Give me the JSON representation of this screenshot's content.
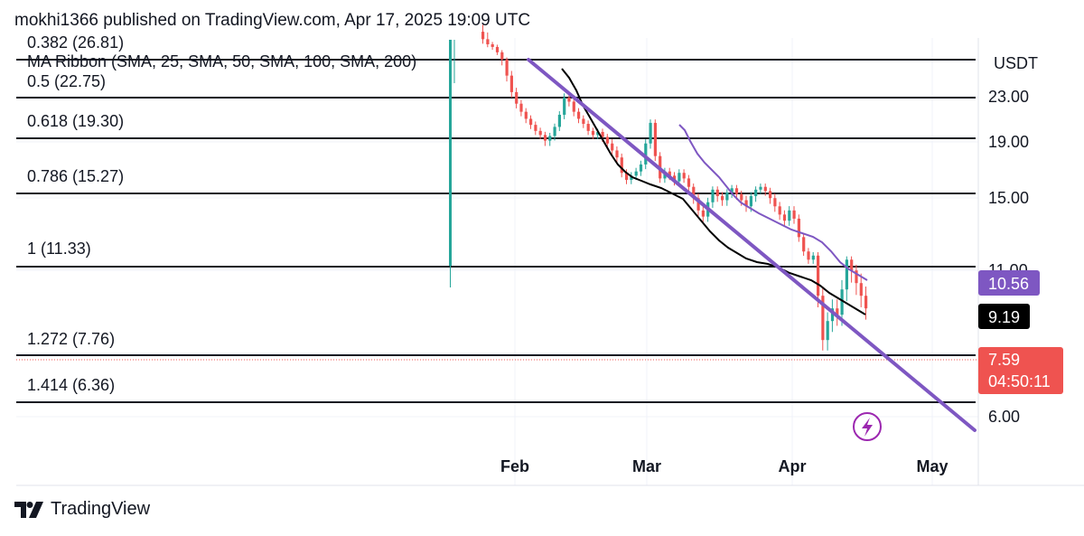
{
  "header": {
    "text": "mokhi1366 published on TradingView.com, Apr 17, 2025 19:09 UTC"
  },
  "indicator_label": "MA Ribbon (SMA, 25, SMA, 50, SMA, 100, SMA, 200)",
  "footer": {
    "brand": "TradingView"
  },
  "colors": {
    "up": "#26a69a",
    "down": "#ef5350",
    "trend": "#7e57c2",
    "ma_black": "#000000",
    "ma_purple": "#7e57c2",
    "grid": "#eeeeee"
  },
  "chart_data": {
    "type": "candlestick",
    "currency": "USDT",
    "y_ticks": [
      "23.00",
      "19.00",
      "15.00",
      "11.00",
      "6.00"
    ],
    "x_ticks": [
      "Feb",
      "Mar",
      "Apr",
      "May"
    ],
    "fib_levels": [
      {
        "label": "0.382 (26.81)",
        "value": 26.81
      },
      {
        "label": "0.5 (22.75)",
        "value": 22.75
      },
      {
        "label": "0.618 (19.30)",
        "value": 19.3
      },
      {
        "label": "0.786 (15.27)",
        "value": 15.27
      },
      {
        "label": "1 (11.33)",
        "value": 11.33
      },
      {
        "label": "1.272 (7.76)",
        "value": 7.76
      },
      {
        "label": "1.414 (6.36)",
        "value": 6.36
      }
    ],
    "price_tags": {
      "ma_purple": "10.56",
      "ma_black": "9.19",
      "last_price": "7.59",
      "countdown": "04:50:11"
    }
  }
}
